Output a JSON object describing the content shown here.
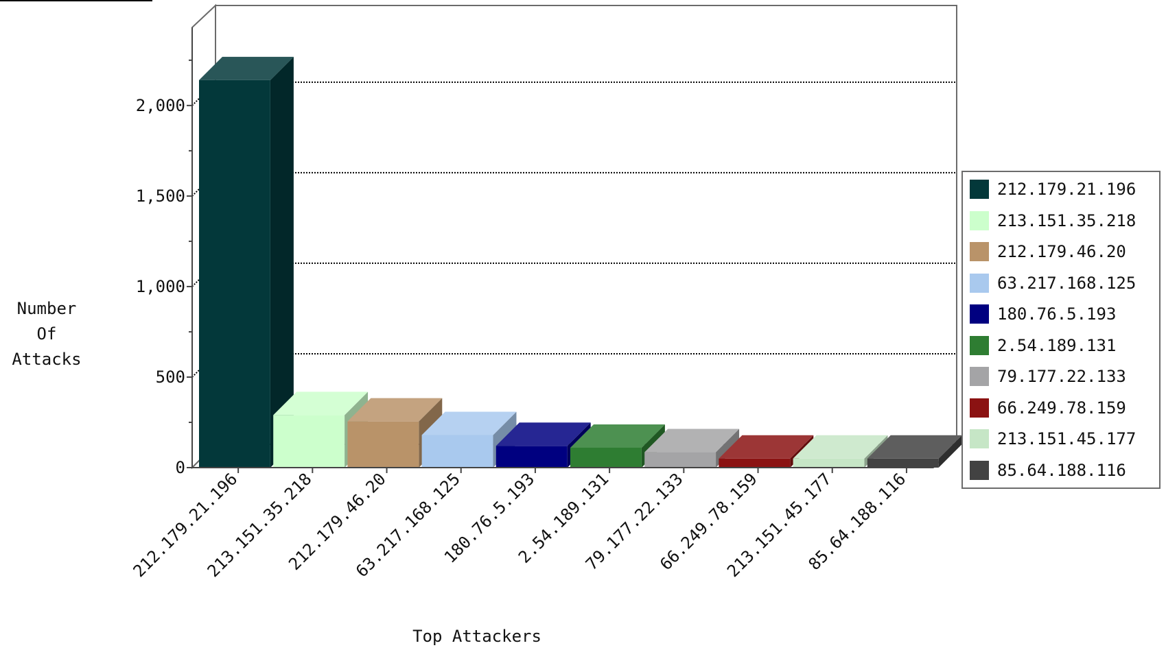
{
  "chart_data": {
    "type": "bar",
    "style": "3d",
    "xlabel": "Top Attackers",
    "ylabel": "Number\nOf\nAttacks",
    "ylim": [
      0,
      2350
    ],
    "yticks": [
      0,
      500,
      1000,
      1500,
      2000
    ],
    "ytick_labels": [
      "0",
      "500",
      "1,000",
      "1,500",
      "2,000"
    ],
    "grid": true,
    "legend_position": "right",
    "categories": [
      "212.179.21.196",
      "213.151.35.218",
      "212.179.46.20",
      "63.217.168.125",
      "180.76.5.193",
      "2.54.189.131",
      "79.177.22.133",
      "66.249.78.159",
      "213.151.45.177",
      "85.64.188.116"
    ],
    "values": [
      2140,
      290,
      255,
      180,
      120,
      110,
      85,
      50,
      50,
      50
    ],
    "colors": [
      "#03383a",
      "#ccffcc",
      "#b99369",
      "#a9c9ee",
      "#000080",
      "#2e7d32",
      "#a4a4a6",
      "#8b1212",
      "#c6e6c6",
      "#424242"
    ]
  }
}
